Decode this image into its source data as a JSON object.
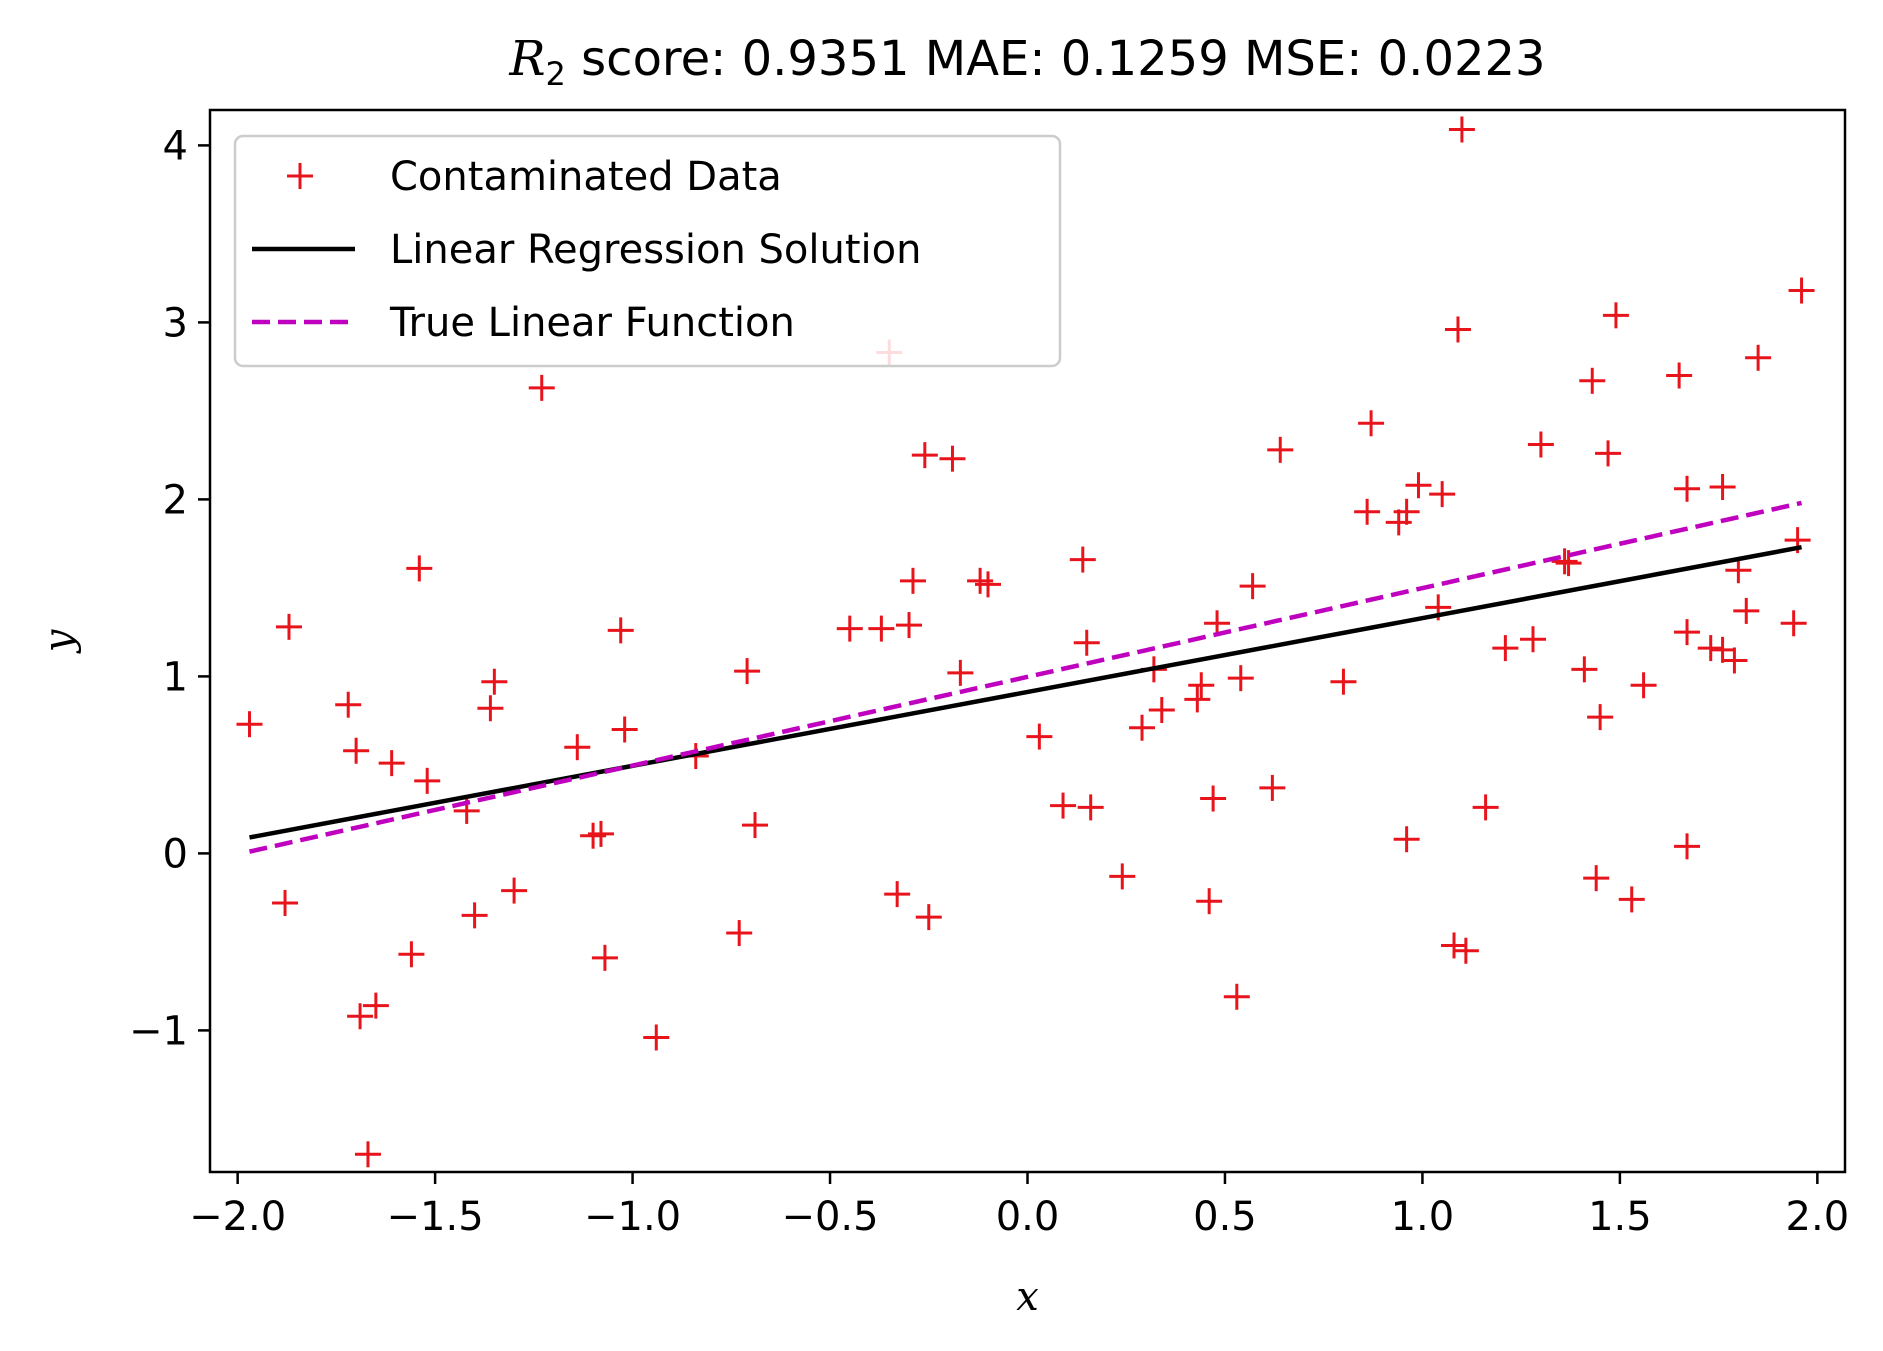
{
  "chart_data": {
    "type": "scatter",
    "title_prefix": "R",
    "title_subscript": "2",
    "title_rest": " score: 0.9351  MAE: 0.1259  MSE: 0.0223",
    "xlabel": "x",
    "ylabel": "y",
    "xlim": [
      -2.07,
      2.07
    ],
    "ylim": [
      -1.8,
      4.2
    ],
    "xticks": [
      -2.0,
      -1.5,
      -1.0,
      -0.5,
      0.0,
      0.5,
      1.0,
      1.5,
      2.0
    ],
    "xtick_labels": [
      "−2.0",
      "−1.5",
      "−1.0",
      "−0.5",
      "0.0",
      "0.5",
      "1.0",
      "1.5",
      "2.0"
    ],
    "yticks": [
      -1,
      0,
      1,
      2,
      3,
      4
    ],
    "ytick_labels": [
      "−1",
      "0",
      "1",
      "2",
      "3",
      "4"
    ],
    "legend_position": "upper-left",
    "series": [
      {
        "name": "Contaminated Data",
        "style": "marker-plus",
        "color": "#e8141c",
        "points": [
          [
            -1.97,
            0.73
          ],
          [
            -1.88,
            -0.28
          ],
          [
            -1.87,
            1.28
          ],
          [
            -1.72,
            0.84
          ],
          [
            -1.7,
            0.58
          ],
          [
            -1.69,
            -0.92
          ],
          [
            -1.67,
            -1.7
          ],
          [
            -1.65,
            -0.86
          ],
          [
            -1.61,
            0.51
          ],
          [
            -1.56,
            -0.57
          ],
          [
            -1.54,
            1.61
          ],
          [
            -1.52,
            0.41
          ],
          [
            -1.42,
            0.24
          ],
          [
            -1.4,
            -0.35
          ],
          [
            -1.36,
            0.82
          ],
          [
            -1.35,
            0.97
          ],
          [
            -1.3,
            -0.21
          ],
          [
            -1.23,
            2.63
          ],
          [
            -1.14,
            0.6
          ],
          [
            -1.1,
            0.1
          ],
          [
            -1.08,
            0.11
          ],
          [
            -1.07,
            -0.59
          ],
          [
            -1.03,
            1.26
          ],
          [
            -1.02,
            0.7
          ],
          [
            -0.94,
            -1.04
          ],
          [
            -0.84,
            0.55
          ],
          [
            -0.71,
            1.03
          ],
          [
            -0.69,
            0.16
          ],
          [
            -0.73,
            -0.45
          ],
          [
            -0.45,
            1.27
          ],
          [
            -0.37,
            1.27
          ],
          [
            -0.35,
            2.83
          ],
          [
            -0.33,
            -0.23
          ],
          [
            -0.3,
            1.29
          ],
          [
            -0.29,
            1.54
          ],
          [
            -0.26,
            2.25
          ],
          [
            -0.25,
            -0.36
          ],
          [
            -0.19,
            2.23
          ],
          [
            -0.17,
            1.02
          ],
          [
            -0.12,
            1.54
          ],
          [
            -0.1,
            1.52
          ],
          [
            0.03,
            0.66
          ],
          [
            0.09,
            0.27
          ],
          [
            0.14,
            1.66
          ],
          [
            0.15,
            1.19
          ],
          [
            0.16,
            0.26
          ],
          [
            0.24,
            -0.13
          ],
          [
            0.29,
            0.71
          ],
          [
            0.32,
            1.04
          ],
          [
            0.34,
            0.81
          ],
          [
            0.43,
            0.87
          ],
          [
            0.44,
            0.95
          ],
          [
            0.46,
            -0.27
          ],
          [
            0.47,
            0.31
          ],
          [
            0.48,
            1.3
          ],
          [
            0.53,
            -0.81
          ],
          [
            0.54,
            0.99
          ],
          [
            0.57,
            1.51
          ],
          [
            0.62,
            0.37
          ],
          [
            0.64,
            2.28
          ],
          [
            0.8,
            0.97
          ],
          [
            0.86,
            1.93
          ],
          [
            0.87,
            2.43
          ],
          [
            0.94,
            1.87
          ],
          [
            0.96,
            1.93
          ],
          [
            0.96,
            0.08
          ],
          [
            0.99,
            2.08
          ],
          [
            1.05,
            2.03
          ],
          [
            1.04,
            1.39
          ],
          [
            1.08,
            -0.52
          ],
          [
            1.09,
            2.96
          ],
          [
            1.1,
            4.09
          ],
          [
            1.11,
            -0.55
          ],
          [
            1.16,
            0.26
          ],
          [
            1.21,
            1.16
          ],
          [
            1.28,
            1.21
          ],
          [
            1.3,
            2.31
          ],
          [
            1.36,
            1.65
          ],
          [
            1.37,
            1.64
          ],
          [
            1.41,
            1.04
          ],
          [
            1.43,
            2.67
          ],
          [
            1.44,
            -0.14
          ],
          [
            1.45,
            0.77
          ],
          [
            1.47,
            2.26
          ],
          [
            1.49,
            3.04
          ],
          [
            1.53,
            -0.26
          ],
          [
            1.56,
            0.95
          ],
          [
            1.65,
            2.7
          ],
          [
            1.67,
            2.06
          ],
          [
            1.67,
            1.25
          ],
          [
            1.67,
            0.04
          ],
          [
            1.73,
            1.16
          ],
          [
            1.76,
            1.15
          ],
          [
            1.76,
            2.07
          ],
          [
            1.79,
            1.09
          ],
          [
            1.8,
            1.6
          ],
          [
            1.82,
            1.37
          ],
          [
            1.85,
            2.8
          ],
          [
            1.94,
            1.3
          ],
          [
            1.95,
            1.77
          ],
          [
            1.96,
            3.18
          ]
        ]
      },
      {
        "name": "Linear Regression Solution",
        "style": "solid-line",
        "color": "#000000",
        "points": [
          [
            -1.97,
            0.09
          ],
          [
            1.96,
            1.73
          ]
        ]
      },
      {
        "name": "True Linear Function",
        "style": "dashed-line",
        "color": "#bf00bf",
        "points": [
          [
            -1.97,
            0.01
          ],
          [
            1.96,
            1.98
          ]
        ]
      }
    ]
  }
}
